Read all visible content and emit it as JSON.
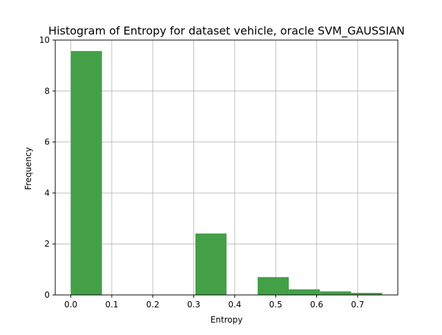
{
  "chart_data": {
    "type": "bar",
    "title": "Histogram of Entropy for dataset vehicle, oracle SVM_GAUSSIAN",
    "xlabel": "Entropy",
    "ylabel": "Frequency",
    "xlim": [
      -0.038,
      0.798
    ],
    "ylim": [
      0,
      10
    ],
    "xticks": [
      "0.0",
      "0.1",
      "0.2",
      "0.3",
      "0.4",
      "0.5",
      "0.6",
      "0.7"
    ],
    "xtick_values": [
      0.0,
      0.1,
      0.2,
      0.3,
      0.4,
      0.5,
      0.6,
      0.7
    ],
    "yticks": [
      "0",
      "2",
      "4",
      "6",
      "8",
      "10"
    ],
    "ytick_values": [
      0,
      2,
      4,
      6,
      8,
      10
    ],
    "grid": true,
    "bar_color": "#43a047",
    "bins": [
      {
        "x0": 0.0,
        "x1": 0.076,
        "value": 9.57
      },
      {
        "x0": 0.076,
        "x1": 0.152,
        "value": 0
      },
      {
        "x0": 0.152,
        "x1": 0.228,
        "value": 0
      },
      {
        "x0": 0.304,
        "x1": 0.38,
        "value": 2.41
      },
      {
        "x0": 0.38,
        "x1": 0.456,
        "value": 0
      },
      {
        "x0": 0.456,
        "x1": 0.532,
        "value": 0.7
      },
      {
        "x0": 0.532,
        "x1": 0.608,
        "value": 0.22
      },
      {
        "x0": 0.608,
        "x1": 0.684,
        "value": 0.14
      },
      {
        "x0": 0.684,
        "x1": 0.76,
        "value": 0.08
      }
    ]
  }
}
